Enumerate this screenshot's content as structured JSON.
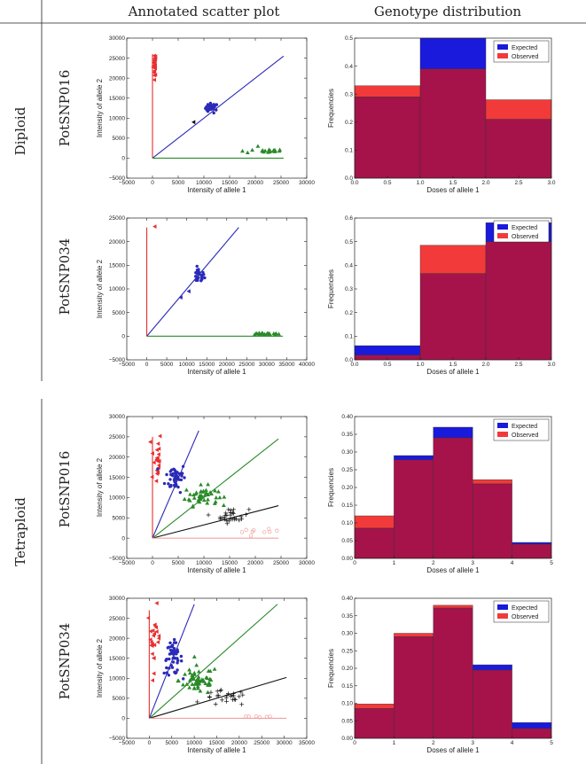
{
  "headers": {
    "col1": "Annotated scatter plot",
    "col2": "Genotype distribution"
  },
  "groups": [
    "Diploid",
    "Tetraploid"
  ],
  "rows": [
    "PotSNP016",
    "PotSNP034",
    "PotSNP016",
    "PotSNP034"
  ],
  "colors": {
    "expected": "#1a1adc",
    "observed": "#f23a3a",
    "overlap": "#a5134a",
    "line_red": "#e83030",
    "line_blue": "#2a2ab8",
    "line_green": "#2a8a2a",
    "line_black": "#111111",
    "line_pink": "#f2a0a0"
  },
  "chart_data": [
    {
      "type": "scatter",
      "panel": "Diploid PotSNP016",
      "xlabel": "Intensity of allele 1",
      "ylabel": "Intensity of allele 2",
      "xlim": [
        -5000,
        30000
      ],
      "ylim": [
        -5000,
        30000
      ],
      "xticks": [
        -5000,
        0,
        5000,
        10000,
        15000,
        20000,
        25000,
        30000
      ],
      "yticks": [
        -5000,
        0,
        5000,
        10000,
        15000,
        20000,
        25000,
        30000
      ],
      "tick_labels_x": [
        "−5000",
        "0",
        "5000",
        "10000",
        "15000",
        "20000",
        "25000",
        "30000"
      ],
      "tick_labels_y": [
        "−5000",
        "0",
        "5000",
        "10000",
        "15000",
        "20000",
        "25000",
        "30000"
      ],
      "lines": [
        {
          "color": "line_red",
          "points": [
            [
              0,
              0
            ],
            [
              0,
              26000
            ]
          ]
        },
        {
          "color": "line_blue",
          "points": [
            [
              0,
              0
            ],
            [
              25500,
              25500
            ]
          ]
        },
        {
          "color": "line_green",
          "points": [
            [
              0,
              0
            ],
            [
              25500,
              0
            ]
          ]
        }
      ],
      "clusters": [
        {
          "color": "line_red",
          "marker": "tri-left",
          "cx": 400,
          "cy": 23500,
          "sx": 150,
          "sy": 1500,
          "n": 22
        },
        {
          "color": "line_blue",
          "marker": "circle",
          "cx": 11500,
          "cy": 12500,
          "sx": 600,
          "sy": 600,
          "n": 28
        },
        {
          "color": "line_green",
          "marker": "tri-up",
          "cx": 22500,
          "cy": 1800,
          "sx": 1500,
          "sy": 200,
          "n": 16
        }
      ],
      "outliers": [
        {
          "x": 8000,
          "y": 9000,
          "marker": "tri-left",
          "color": "line_black"
        },
        {
          "x": 17500,
          "y": 1800,
          "marker": "tri-up",
          "color": "line_green"
        },
        {
          "x": 18500,
          "y": 1400,
          "marker": "tri-up",
          "color": "line_green"
        },
        {
          "x": 20500,
          "y": 3000,
          "marker": "tri-up",
          "color": "line_green"
        }
      ]
    },
    {
      "type": "bar",
      "panel": "Diploid PotSNP016",
      "xlabel": "Doses of allele 1",
      "ylabel": "Frequencies",
      "bin_edges": [
        0,
        1,
        2,
        3
      ],
      "expected": [
        0.29,
        0.5,
        0.21
      ],
      "observed": [
        0.33,
        0.39,
        0.28
      ],
      "xlim": [
        0,
        3
      ],
      "ylim": [
        0,
        0.5
      ],
      "xticks": [
        0,
        0.5,
        1,
        1.5,
        2,
        2.5,
        3
      ],
      "xtick_labels": [
        "0.0",
        "0.5",
        "1.0",
        "1.5",
        "2.0",
        "2.5",
        "3.0"
      ],
      "yticks": [
        0,
        0.1,
        0.2,
        0.3,
        0.4,
        0.5
      ],
      "ytick_labels": [
        "0.0",
        "0.1",
        "0.2",
        "0.3",
        "0.4",
        "0.5"
      ],
      "legend": [
        "Expected",
        "Observed"
      ],
      "legend_position": "top-right"
    },
    {
      "type": "scatter",
      "panel": "Diploid PotSNP034",
      "xlabel": "Intensity of allele 1",
      "ylabel": "Intensity of allele 2",
      "xlim": [
        -5000,
        40000
      ],
      "ylim": [
        -5000,
        25000
      ],
      "xticks": [
        -5000,
        0,
        5000,
        10000,
        15000,
        20000,
        25000,
        30000,
        35000,
        40000
      ],
      "yticks": [
        -5000,
        0,
        5000,
        10000,
        15000,
        20000,
        25000
      ],
      "tick_labels_x": [
        "−5000",
        "0",
        "5000",
        "10000",
        "15000",
        "20000",
        "25000",
        "30000",
        "35000",
        "40000"
      ],
      "tick_labels_y": [
        "−5000",
        "0",
        "5000",
        "10000",
        "15000",
        "20000",
        "25000"
      ],
      "lines": [
        {
          "color": "line_red",
          "points": [
            [
              0,
              0
            ],
            [
              0,
              23000
            ]
          ]
        },
        {
          "color": "line_blue",
          "points": [
            [
              0,
              0
            ],
            [
              23000,
              23000
            ]
          ]
        },
        {
          "color": "line_green",
          "points": [
            [
              0,
              0
            ],
            [
              34000,
              0
            ]
          ]
        }
      ],
      "clusters": [
        {
          "color": "line_blue",
          "marker": "circle",
          "cx": 13000,
          "cy": 12800,
          "sx": 700,
          "sy": 800,
          "n": 28
        },
        {
          "color": "line_green",
          "marker": "tri-up",
          "cx": 30000,
          "cy": 500,
          "sx": 1600,
          "sy": 100,
          "n": 20
        }
      ],
      "outliers": [
        {
          "x": 2000,
          "y": 23200,
          "marker": "tri-left",
          "color": "line_red"
        },
        {
          "x": 10500,
          "y": 9500,
          "marker": "tri-left",
          "color": "line_blue"
        },
        {
          "x": 8500,
          "y": 8200,
          "marker": "tri-left",
          "color": "line_blue"
        }
      ]
    },
    {
      "type": "bar",
      "panel": "Diploid PotSNP034",
      "xlabel": "Doses of allele 1",
      "ylabel": "Frequencies",
      "bin_edges": [
        0,
        1,
        2,
        3
      ],
      "expected": [
        0.06,
        0.365,
        0.58
      ],
      "observed": [
        0.02,
        0.485,
        0.5
      ],
      "xlim": [
        0,
        3
      ],
      "ylim": [
        0,
        0.6
      ],
      "xticks": [
        0,
        0.5,
        1,
        1.5,
        2,
        2.5,
        3
      ],
      "xtick_labels": [
        "0.0",
        "0.5",
        "1.0",
        "1.5",
        "2.0",
        "2.5",
        "3.0"
      ],
      "yticks": [
        0,
        0.1,
        0.2,
        0.3,
        0.4,
        0.5,
        0.6
      ],
      "ytick_labels": [
        "0.0",
        "0.1",
        "0.2",
        "0.3",
        "0.4",
        "0.5",
        "0.6"
      ],
      "legend": [
        "Expected",
        "Observed"
      ],
      "legend_position": "top-right"
    },
    {
      "type": "scatter",
      "panel": "Tetraploid PotSNP016",
      "xlabel": "Intensity of allele 1",
      "ylabel": "Intensity of allele 2",
      "xlim": [
        -5000,
        30000
      ],
      "ylim": [
        -5000,
        30000
      ],
      "xticks": [
        -5000,
        0,
        5000,
        10000,
        15000,
        20000,
        25000,
        30000
      ],
      "yticks": [
        -5000,
        0,
        5000,
        10000,
        15000,
        20000,
        25000,
        30000
      ],
      "tick_labels_x": [
        "−5000",
        "0",
        "5000",
        "10000",
        "15000",
        "20000",
        "25000",
        "30000"
      ],
      "tick_labels_y": [
        "−5000",
        "0",
        "5000",
        "10000",
        "15000",
        "20000",
        "25000",
        "30000"
      ],
      "lines": [
        {
          "color": "line_red",
          "points": [
            [
              0,
              0
            ],
            [
              0,
              25000
            ]
          ]
        },
        {
          "color": "line_blue",
          "points": [
            [
              0,
              0
            ],
            [
              9000,
              26500
            ]
          ]
        },
        {
          "color": "line_green",
          "points": [
            [
              0,
              0
            ],
            [
              24500,
              24500
            ]
          ]
        },
        {
          "color": "line_black",
          "points": [
            [
              0,
              0
            ],
            [
              24500,
              8000
            ]
          ]
        },
        {
          "color": "line_pink",
          "points": [
            [
              0,
              0
            ],
            [
              24500,
              0
            ]
          ]
        }
      ],
      "clusters": [
        {
          "color": "line_red",
          "marker": "tri-left",
          "cx": 700,
          "cy": 20000,
          "sx": 500,
          "sy": 3500,
          "n": 22
        },
        {
          "color": "line_blue",
          "marker": "circle",
          "cx": 4500,
          "cy": 15000,
          "sx": 1000,
          "sy": 1800,
          "n": 45
        },
        {
          "color": "line_green",
          "marker": "tri-up",
          "cx": 9500,
          "cy": 10500,
          "sx": 1600,
          "sy": 1200,
          "n": 45
        },
        {
          "color": "line_black",
          "marker": "plus",
          "cx": 15500,
          "cy": 5500,
          "sx": 1600,
          "sy": 900,
          "n": 30
        },
        {
          "color": "line_pink",
          "marker": "open-circle",
          "cx": 21000,
          "cy": 1600,
          "sx": 1800,
          "sy": 300,
          "n": 9
        }
      ],
      "outliers": []
    },
    {
      "type": "bar",
      "panel": "Tetraploid PotSNP016",
      "xlabel": "Doses of allele 1",
      "ylabel": "Frequencies",
      "bin_edges": [
        0,
        1,
        2,
        3,
        4,
        5
      ],
      "expected": [
        0.085,
        0.29,
        0.37,
        0.21,
        0.045
      ],
      "observed": [
        0.12,
        0.278,
        0.34,
        0.222,
        0.04
      ],
      "xlim": [
        0,
        5
      ],
      "ylim": [
        0,
        0.4
      ],
      "xticks": [
        0,
        1,
        2,
        3,
        4,
        5
      ],
      "xtick_labels": [
        "0",
        "1",
        "2",
        "3",
        "4",
        "5"
      ],
      "yticks": [
        0,
        0.05,
        0.1,
        0.15,
        0.2,
        0.25,
        0.3,
        0.35,
        0.4
      ],
      "ytick_labels": [
        "0.00",
        "0.05",
        "0.10",
        "0.15",
        "0.20",
        "0.25",
        "0.30",
        "0.35",
        "0.40"
      ],
      "legend": [
        "Expected",
        "Observed"
      ],
      "legend_position": "top-right"
    },
    {
      "type": "scatter",
      "panel": "Tetraploid PotSNP034",
      "xlabel": "Intensity of allele 1",
      "ylabel": "Intensity of allele 2",
      "xlim": [
        -5000,
        35000
      ],
      "ylim": [
        -5000,
        30000
      ],
      "xticks": [
        -5000,
        0,
        5000,
        10000,
        15000,
        20000,
        25000,
        30000,
        35000
      ],
      "yticks": [
        -5000,
        0,
        5000,
        10000,
        15000,
        20000,
        25000,
        30000
      ],
      "tick_labels_x": [
        "−5000",
        "0",
        "5000",
        "10000",
        "15000",
        "20000",
        "25000",
        "30000",
        "35000"
      ],
      "tick_labels_y": [
        "−5000",
        "0",
        "5000",
        "10000",
        "15000",
        "20000",
        "25000",
        "30000"
      ],
      "lines": [
        {
          "color": "line_red",
          "points": [
            [
              0,
              0
            ],
            [
              0,
              27000
            ]
          ]
        },
        {
          "color": "line_blue",
          "points": [
            [
              0,
              0
            ],
            [
              10000,
              28500
            ]
          ]
        },
        {
          "color": "line_green",
          "points": [
            [
              0,
              0
            ],
            [
              28500,
              28500
            ]
          ]
        },
        {
          "color": "line_black",
          "points": [
            [
              0,
              0
            ],
            [
              30500,
              10200
            ]
          ]
        },
        {
          "color": "line_pink",
          "points": [
            [
              0,
              0
            ],
            [
              30500,
              0
            ]
          ]
        }
      ],
      "clusters": [
        {
          "color": "line_red",
          "marker": "tri-left",
          "cx": 1000,
          "cy": 20000,
          "sx": 700,
          "sy": 4000,
          "n": 24
        },
        {
          "color": "line_blue",
          "marker": "circle",
          "cx": 5300,
          "cy": 15000,
          "sx": 1000,
          "sy": 2000,
          "n": 50
        },
        {
          "color": "line_green",
          "marker": "tri-up",
          "cx": 11000,
          "cy": 9500,
          "sx": 2200,
          "sy": 1800,
          "n": 55
        },
        {
          "color": "line_black",
          "marker": "plus",
          "cx": 17000,
          "cy": 5000,
          "sx": 2400,
          "sy": 1000,
          "n": 26
        },
        {
          "color": "line_pink",
          "marker": "open-circle",
          "cx": 24000,
          "cy": 500,
          "sx": 2500,
          "sy": 150,
          "n": 6
        }
      ],
      "outliers": []
    },
    {
      "type": "bar",
      "panel": "Tetraploid PotSNP034",
      "xlabel": "Doses of allele 1",
      "ylabel": "Frequencies",
      "bin_edges": [
        0,
        1,
        2,
        3,
        4,
        5
      ],
      "expected": [
        0.085,
        0.29,
        0.372,
        0.21,
        0.045
      ],
      "observed": [
        0.098,
        0.3,
        0.38,
        0.195,
        0.028
      ],
      "xlim": [
        0,
        5
      ],
      "ylim": [
        0,
        0.4
      ],
      "xticks": [
        0,
        1,
        2,
        3,
        4,
        5
      ],
      "xtick_labels": [
        "0",
        "1",
        "2",
        "3",
        "4",
        "5"
      ],
      "yticks": [
        0,
        0.05,
        0.1,
        0.15,
        0.2,
        0.25,
        0.3,
        0.35,
        0.4
      ],
      "ytick_labels": [
        "0.00",
        "0.05",
        "0.10",
        "0.15",
        "0.20",
        "0.25",
        "0.30",
        "0.35",
        "0.40"
      ],
      "legend": [
        "Expected",
        "Observed"
      ],
      "legend_position": "top-right"
    }
  ]
}
